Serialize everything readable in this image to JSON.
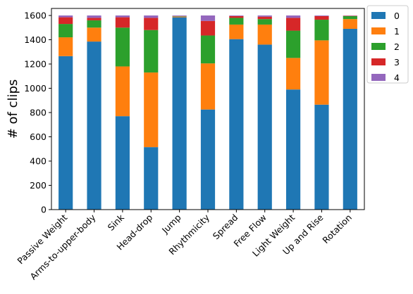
{
  "chart_data": {
    "type": "stacked-bar",
    "ylabel": "# of clips",
    "categories": [
      "Passive Weight",
      "Arms-to-upper-body",
      "Sink",
      "Head-drop",
      "Jump",
      "Rhythmicity",
      "Spread",
      "Free Flow",
      "Light Weight",
      "Up and Rise",
      "Rotation"
    ],
    "series": [
      {
        "name": "0",
        "color": "#1f77b4",
        "values": [
          1265,
          1385,
          770,
          515,
          1585,
          825,
          1405,
          1360,
          990,
          865,
          1490
        ]
      },
      {
        "name": "1",
        "color": "#ff7f0e",
        "values": [
          155,
          115,
          410,
          615,
          5,
          380,
          120,
          165,
          260,
          530,
          80
        ]
      },
      {
        "name": "2",
        "color": "#2ca02c",
        "values": [
          110,
          60,
          320,
          350,
          3,
          230,
          55,
          45,
          225,
          170,
          25
        ]
      },
      {
        "name": "3",
        "color": "#d62728",
        "values": [
          55,
          20,
          85,
          100,
          2,
          120,
          15,
          20,
          105,
          30,
          3
        ]
      },
      {
        "name": "4",
        "color": "#9467bd",
        "values": [
          15,
          20,
          15,
          20,
          5,
          45,
          5,
          10,
          20,
          5,
          2
        ]
      }
    ],
    "ylim": [
      0,
      1658
    ],
    "yticks": [
      0,
      200,
      400,
      600,
      800,
      1000,
      1200,
      1400,
      1600
    ],
    "legend": "upper right outside"
  }
}
